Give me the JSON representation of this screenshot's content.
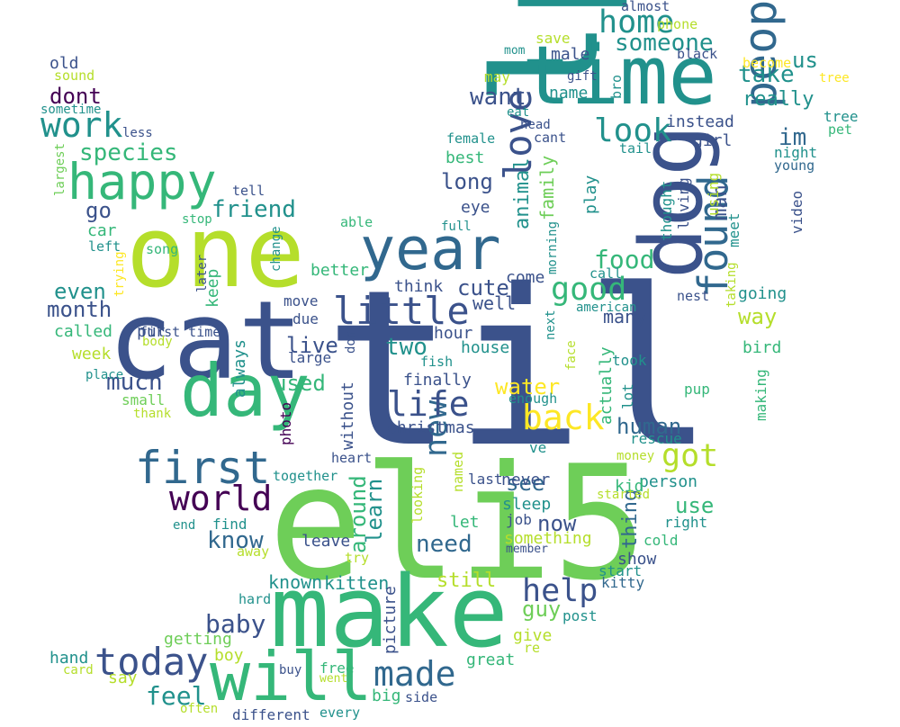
{
  "words": [
    "til",
    "eli5",
    "lpt",
    "cat",
    "make",
    "one",
    "dog",
    "time",
    "day",
    "will",
    "year",
    "happy",
    "first",
    "people",
    "found",
    "love",
    "little",
    "made",
    "today",
    "new",
    "world",
    "back",
    "good",
    "life",
    "home",
    "got",
    "look",
    "work",
    "help",
    "someone",
    "species",
    "want",
    "friend",
    "take",
    "us",
    "dont",
    "food",
    "baby",
    "human",
    "really",
    "even",
    "know",
    "month",
    "long",
    "im",
    "need",
    "live",
    "water",
    "way",
    "use",
    "man",
    "animal",
    "two",
    "cute",
    "feel",
    "around",
    "still",
    "much",
    "learn",
    "thing",
    "see",
    "family",
    "used",
    "go",
    "christmas",
    "old",
    "well",
    "best",
    "girl",
    "hour",
    "bird",
    "keep",
    "now",
    "guy",
    "eye",
    "car",
    "kitten",
    "house",
    "better",
    "going",
    "instead",
    "play",
    "tree",
    "night",
    "name",
    "may",
    "save",
    "male",
    "mom",
    "gift",
    "called",
    "put",
    "known",
    "great",
    "person",
    "something",
    "without",
    "finally",
    "always",
    "think",
    "photo",
    "picture",
    "give",
    "getting",
    "boy",
    "hand",
    "say",
    "big",
    "free",
    "buy",
    "leave",
    "sleep",
    "kid",
    "show",
    "week",
    "large",
    "lot",
    "come",
    "actually",
    "thought",
    "living",
    "using",
    "meet",
    "making",
    "took",
    "pup",
    "rescue",
    "ve",
    "let",
    "last",
    "never",
    "job",
    "right",
    "cold",
    "start",
    "kitty",
    "post",
    "enough",
    "move",
    "due",
    "american",
    "many",
    "call",
    "nest",
    "taking",
    "video",
    "young",
    "pet",
    "tail",
    "female",
    "eat",
    "head",
    "cant",
    "black",
    "phone",
    "almost",
    "become",
    "tree_dup",
    "sound",
    "sometime",
    "less",
    "largest",
    "tell",
    "stop",
    "song",
    "left",
    "trying",
    "later",
    "change",
    "able",
    "full",
    "morning",
    "next",
    "face",
    "don",
    "fish",
    "body",
    "thank",
    "place",
    "small",
    "heart",
    "together",
    "named",
    "looking",
    "started",
    "money",
    "end",
    "find",
    "away",
    "try",
    "member",
    "hard",
    "re",
    "went",
    "card",
    "often",
    "every",
    "different",
    "side",
    "first time",
    "bro"
  ],
  "colors": {
    "dark_purple": "#440154",
    "indigo": "#3b528b",
    "blue": "#31688e",
    "teal": "#21918c",
    "green": "#35b779",
    "lime": "#6ece58",
    "yellow_green": "#b5de2b",
    "yellow": "#fde725"
  }
}
